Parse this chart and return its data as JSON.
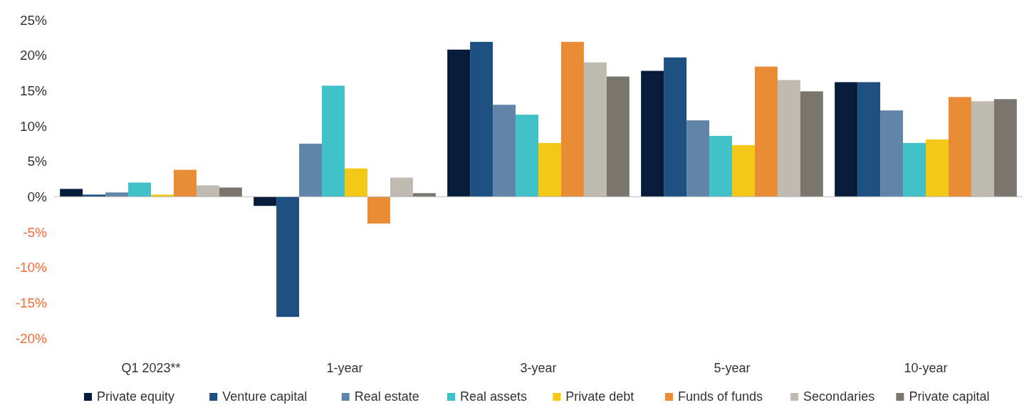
{
  "chart_data": {
    "type": "bar",
    "categories": [
      "Q1 2023**",
      "1-year",
      "3-year",
      "5-year",
      "10-year"
    ],
    "series": [
      {
        "name": "Private equity",
        "color": "#061c3a",
        "values": [
          1.1,
          -1.3,
          20.8,
          17.8,
          16.2
        ]
      },
      {
        "name": "Venture capital",
        "color": "#1d4f80",
        "values": [
          0.3,
          -17.0,
          21.9,
          19.7,
          16.2
        ]
      },
      {
        "name": "Real estate",
        "color": "#6185a8",
        "values": [
          0.6,
          7.5,
          13.0,
          10.8,
          12.2
        ]
      },
      {
        "name": "Real assets",
        "color": "#40c2c8",
        "values": [
          2.0,
          15.7,
          11.6,
          8.6,
          7.6
        ]
      },
      {
        "name": "Private debt",
        "color": "#f4c816",
        "values": [
          0.3,
          4.0,
          7.6,
          7.3,
          8.1
        ]
      },
      {
        "name": "Funds of funds",
        "color": "#e88d35",
        "values": [
          3.8,
          -3.8,
          21.9,
          18.4,
          14.1
        ]
      },
      {
        "name": "Secondaries",
        "color": "#bfbbb0",
        "values": [
          1.6,
          2.7,
          19.0,
          16.5,
          13.5
        ]
      },
      {
        "name": "Private capital",
        "color": "#79766d",
        "values": [
          1.3,
          0.5,
          17.0,
          14.9,
          13.8
        ]
      }
    ],
    "ylim": [
      -20,
      25
    ],
    "yticks": [
      {
        "value": -20,
        "label": "-20%"
      },
      {
        "value": -15,
        "label": "-15%"
      },
      {
        "value": -10,
        "label": "-10%"
      },
      {
        "value": -5,
        "label": "-5%"
      },
      {
        "value": 0,
        "label": "0%"
      },
      {
        "value": 5,
        "label": "5%"
      },
      {
        "value": 10,
        "label": "10%"
      },
      {
        "value": 15,
        "label": "15%"
      },
      {
        "value": 20,
        "label": "20%"
      },
      {
        "value": 25,
        "label": "25%"
      }
    ],
    "legend": "bottom"
  }
}
